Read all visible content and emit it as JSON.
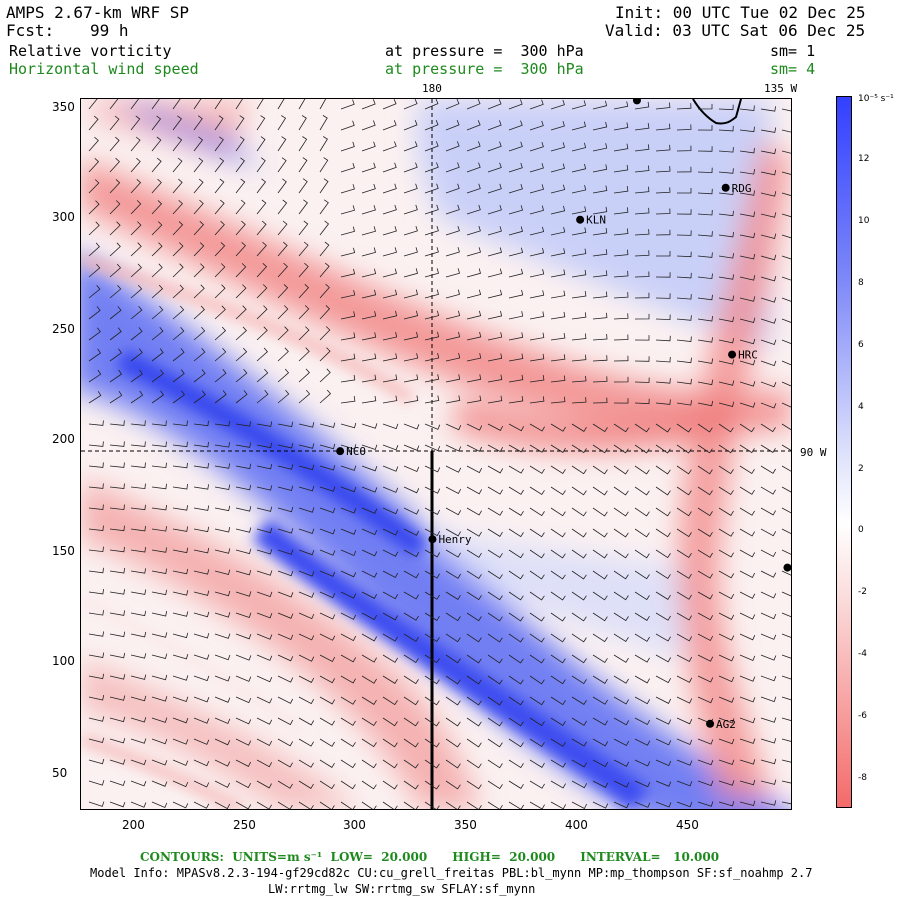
{
  "header": {
    "model": "AMPS 2.67-km WRF SP",
    "forecast_label": "Fcst:",
    "forecast_value": "99 h",
    "init": "Init: 00 UTC Tue 02 Dec 25",
    "valid": "Valid: 03 UTC Sat 06 Dec 25",
    "field1_name": "Relative vorticity",
    "field1_level": "at pressure =  300 hPa",
    "field1_sm": "sm= 1",
    "field2_name": "Horizontal wind speed",
    "field2_level": "at pressure =  300 hPa",
    "field2_sm": "sm= 4"
  },
  "map": {
    "meridian_180": "180",
    "meridian_135w": "135 W",
    "meridian_90w": "90 W",
    "y_ticks": [
      "350",
      "300",
      "250",
      "200",
      "150",
      "100",
      "50"
    ],
    "x_ticks": [
      "200",
      "250",
      "300",
      "350",
      "400",
      "450"
    ],
    "stations": [
      {
        "name": "RDG",
        "x": 0.908,
        "y": 0.125
      },
      {
        "name": "KLN",
        "x": 0.703,
        "y": 0.17
      },
      {
        "name": "HRC",
        "x": 0.917,
        "y": 0.36
      },
      {
        "name": "NCO",
        "x": 0.365,
        "y": 0.496
      },
      {
        "name": "Henry",
        "x": 0.495,
        "y": 0.62
      },
      {
        "name": "AG2",
        "x": 0.886,
        "y": 0.88
      },
      {
        "name": "",
        "x": 0.783,
        "y": 0.002
      },
      {
        "name": "",
        "x": 0.995,
        "y": 0.66
      }
    ]
  },
  "colorbar": {
    "units": "10⁻⁵ s⁻¹",
    "labels": [
      "12",
      "10",
      "8",
      "6",
      "4",
      "2",
      "0",
      "-2",
      "-4",
      "-6",
      "-8"
    ],
    "positive_color": "#3b4bff",
    "negative_color": "#f26a6a"
  },
  "footer": {
    "contours": "CONTOURS:  UNITS=m s⁻¹  LOW=  20.000      HIGH=  20.000      INTERVAL=   10.000",
    "model_info": "Model Info: MPASv8.2.3-194-gf29cd82c CU:cu_grell_freitas PBL:bl_mynn MP:mp_thompson SF:sf_noahmp 2.7",
    "physics": "LW:rrtmg_lw SW:rrtmg_sw SFLAY:sf_mynn"
  }
}
